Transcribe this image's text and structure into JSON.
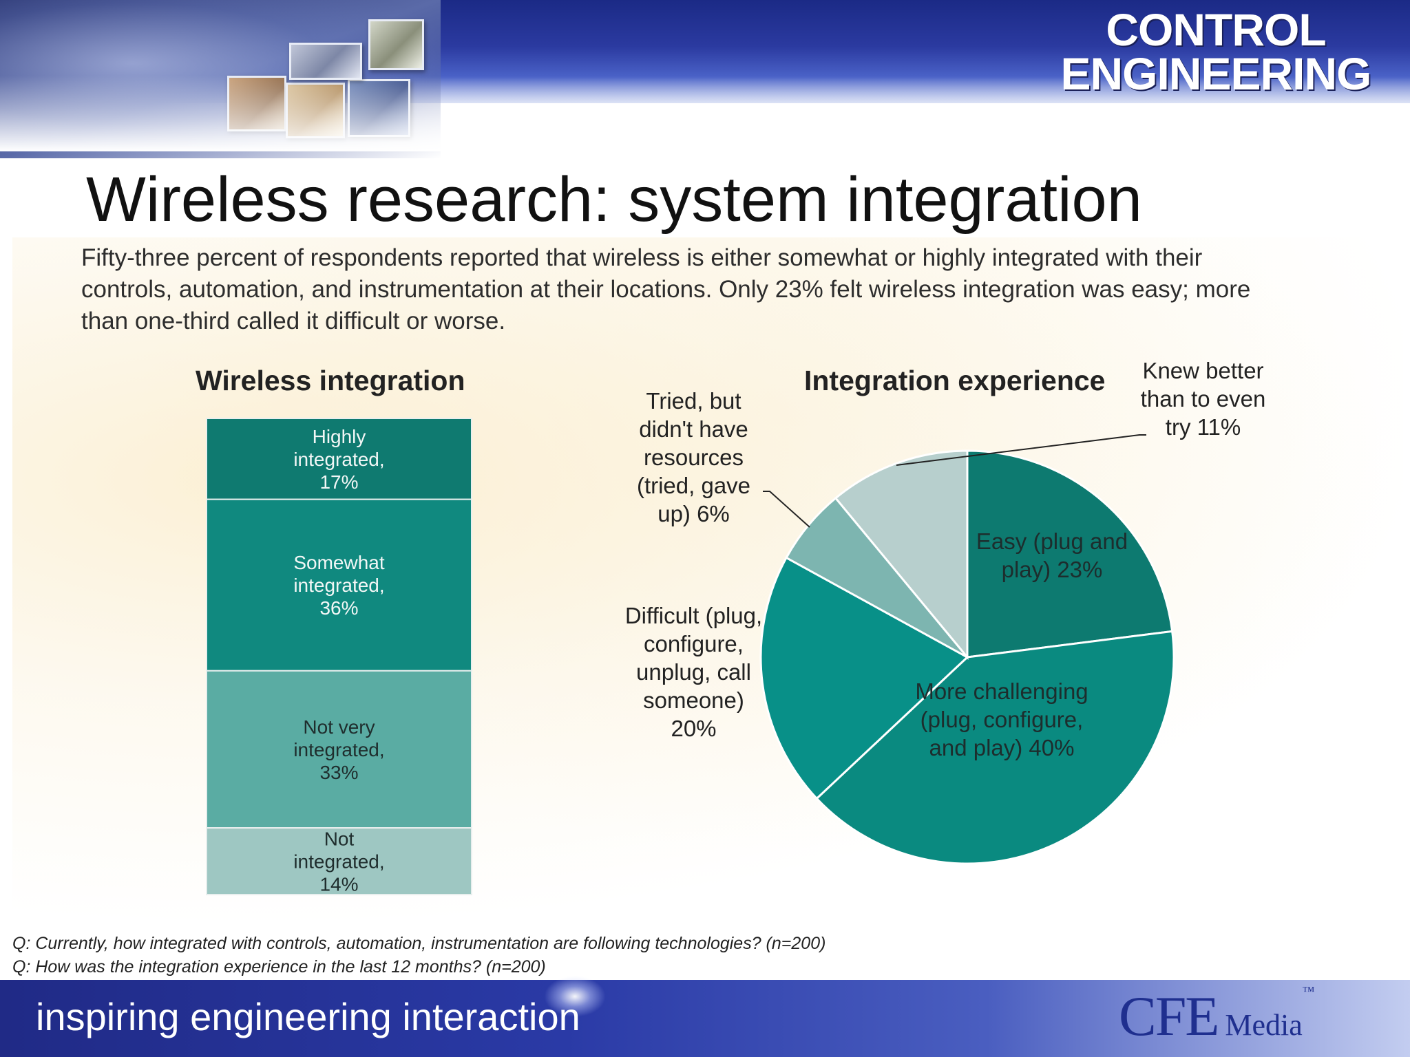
{
  "header": {
    "brand": {
      "line1": "CONTROL",
      "line2": "ENGINEERING"
    }
  },
  "title": "Wireless research: system integration",
  "intro": "Fifty-three percent of respondents reported that wireless is either somewhat or highly integrated with their controls, automation, and instrumentation at their locations. Only 23% felt wireless integration was easy; more than one-third called it difficult or worse.",
  "chart_data": [
    {
      "type": "bar",
      "title": "Wireless integration",
      "stacked": true,
      "categories": [
        "Highly integrated",
        "Somewhat integrated",
        "Not very integrated",
        "Not integrated"
      ],
      "values": [
        17,
        36,
        33,
        14
      ],
      "unit": "%",
      "labels": [
        [
          "Highly",
          "integrated,",
          "17%"
        ],
        [
          "Somewhat",
          "integrated,",
          "36%"
        ],
        [
          "Not very",
          "integrated,",
          "33%"
        ],
        [
          "Not",
          "integrated,",
          "14%"
        ]
      ],
      "colors": [
        "#0f7a70",
        "#10897f",
        "#5aaca3",
        "#9ec7c2"
      ]
    },
    {
      "type": "pie",
      "title": "Integration experience",
      "categories": [
        "Easy (plug and play)",
        "More challenging (plug, configure, and play)",
        "Difficult (plug, configure, unplug, call someone)",
        "Tried, but didn't have resources (tried, gave up)",
        "Knew better than to even try"
      ],
      "values": [
        23,
        40,
        20,
        6,
        11
      ],
      "unit": "%",
      "labels": {
        "easy": "Easy (plug and play) 23%",
        "more": "More challenging (plug, configure, and play) 40%",
        "difficult": "Difficult (plug, configure, unplug, call someone) 20%",
        "tried": "Tried, but didn't have resources (tried, gave up) 6%",
        "knew": "Knew better than to even try 11%"
      },
      "colors": [
        "#0d7a70",
        "#0a8a80",
        "#089088",
        "#7db5b0",
        "#b7cfcd"
      ]
    }
  ],
  "footnotes": [
    "Q: Currently, how integrated with controls, automation, instrumentation are following technologies? (n=200)",
    "Q: How was the integration experience in the last 12 months? (n=200)"
  ],
  "footer": {
    "tagline": "inspiring engineering interaction",
    "logo_main": "CFE",
    "logo_sub": "Media",
    "logo_tm": "™"
  }
}
